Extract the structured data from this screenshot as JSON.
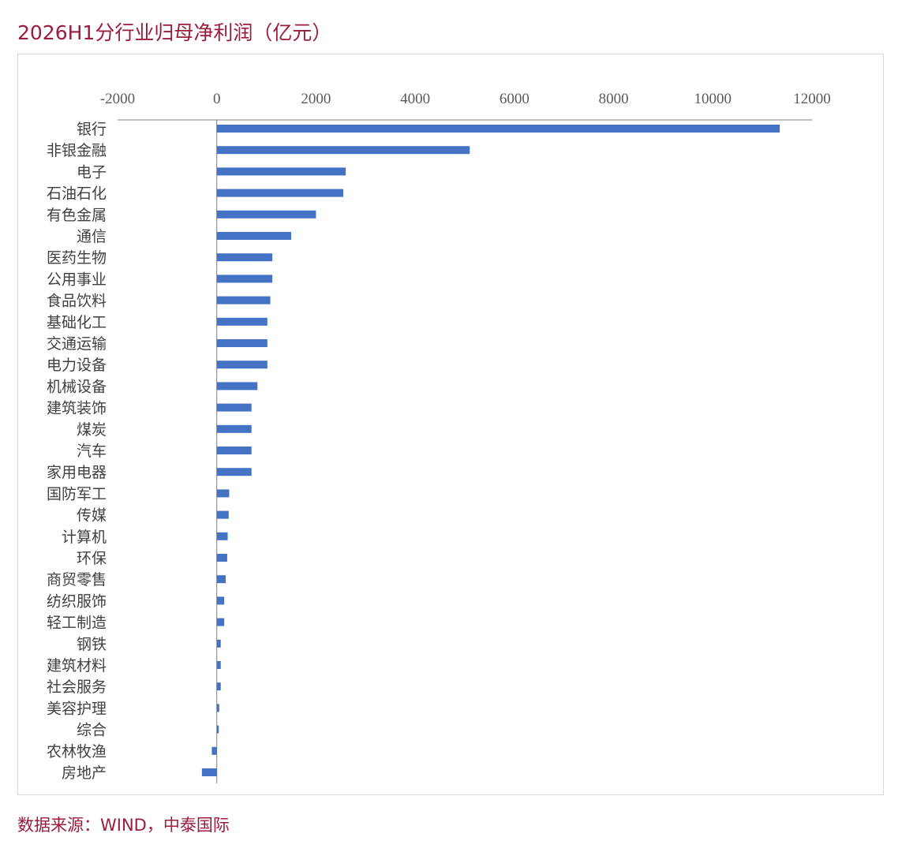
{
  "title": "2026H1分行业归母净利润（亿元）",
  "source": "数据来源：WIND，中泰国际",
  "colors": {
    "bar": "#4472c4",
    "title": "#9b1c3c",
    "axis": "#7f7f7f"
  },
  "chart_data": {
    "type": "bar",
    "orientation": "horizontal",
    "title": "2026H1分行业归母净利润（亿元）",
    "xlabel": "",
    "ylabel": "",
    "xlim": [
      -2000,
      12000
    ],
    "xticks": [
      -2000,
      0,
      2000,
      4000,
      6000,
      8000,
      10000,
      12000
    ],
    "xtick_labels": [
      "-2000",
      "0",
      "2000",
      "4000",
      "6000",
      "8000",
      "10000",
      "12000"
    ],
    "x_axis_position": "top",
    "grid": false,
    "legend": "none",
    "categories": [
      "银行",
      "非银金融",
      "电子",
      "石油石化",
      "有色金属",
      "通信",
      "医药生物",
      "公用事业",
      "食品饮料",
      "基础化工",
      "交通运输",
      "电力设备",
      "机械设备",
      "建筑装饰",
      "煤炭",
      "汽车",
      "家用电器",
      "国防军工",
      "传媒",
      "计算机",
      "环保",
      "商贸零售",
      "纺织服饰",
      "轻工制造",
      "钢铁",
      "建筑材料",
      "社会服务",
      "美容护理",
      "综合",
      "农林牧渔",
      "房地产"
    ],
    "values": [
      11350,
      5100,
      2600,
      2550,
      2000,
      1500,
      1120,
      1120,
      1080,
      1020,
      1020,
      1020,
      820,
      700,
      700,
      700,
      700,
      250,
      240,
      220,
      210,
      180,
      150,
      150,
      80,
      80,
      80,
      50,
      40,
      -100,
      -300
    ]
  }
}
